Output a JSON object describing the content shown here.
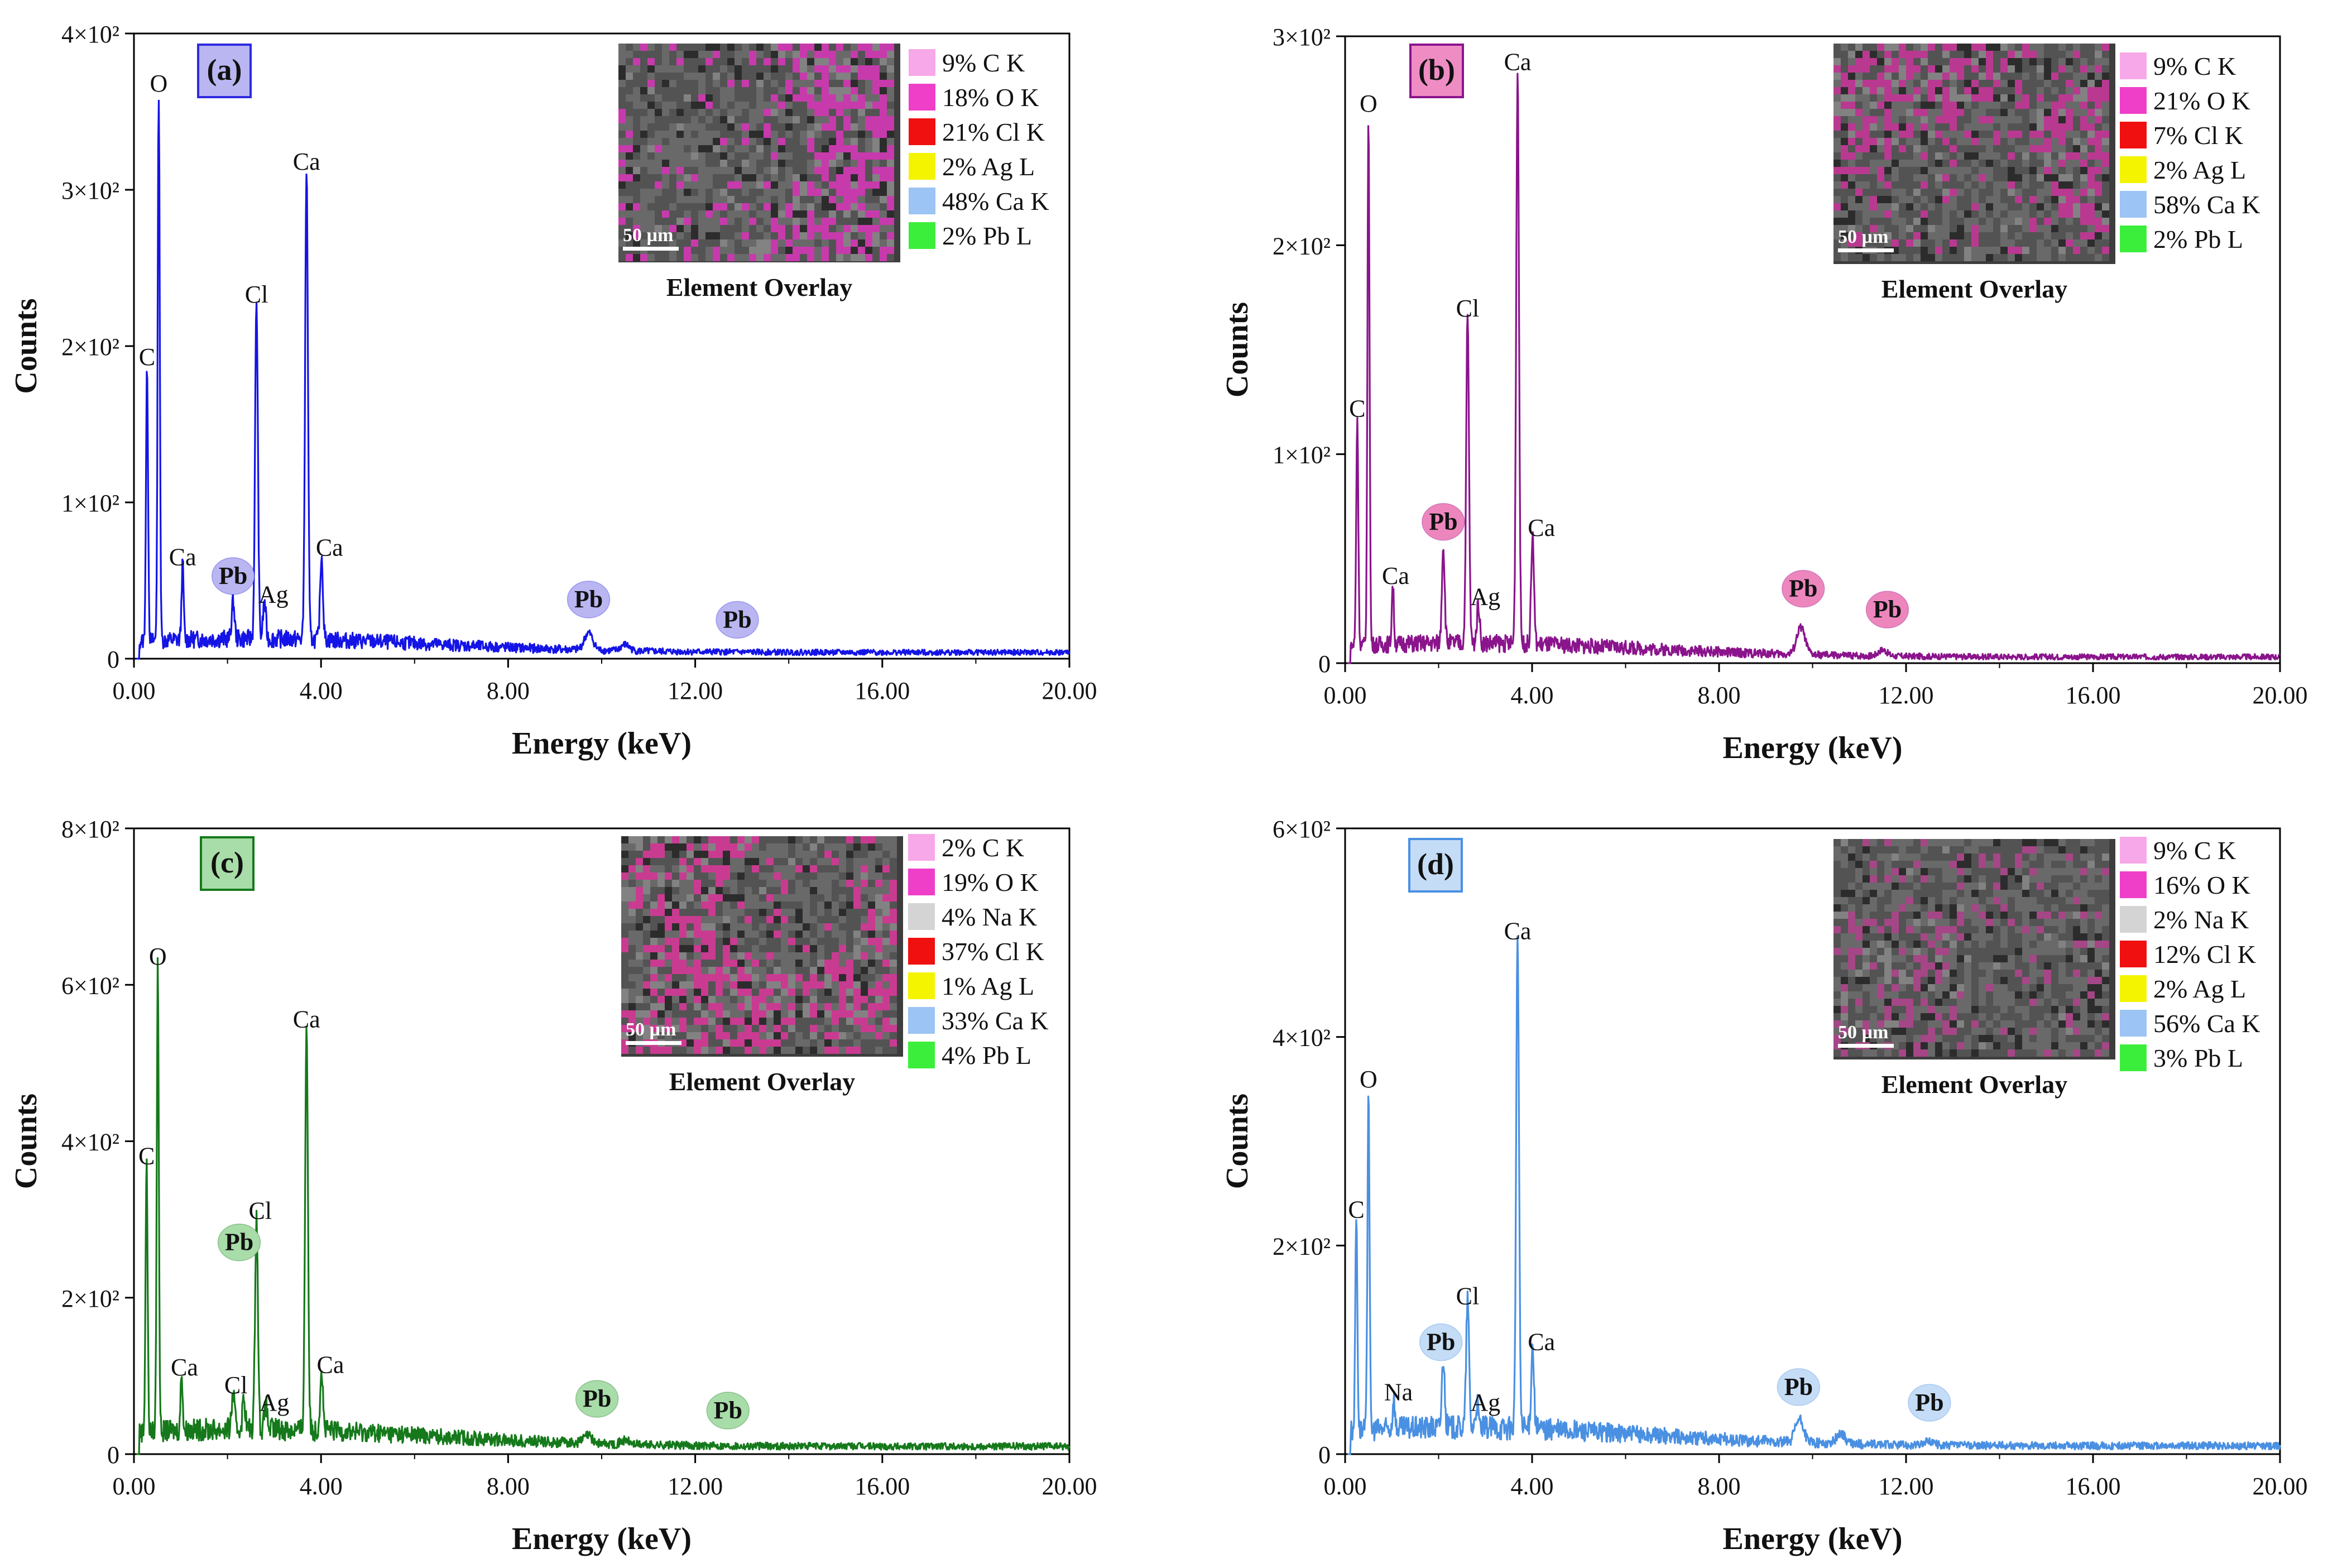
{
  "chart_data": [
    {
      "type": "line",
      "panel_label": "(a)",
      "xlabel": "Energy (keV)",
      "ylabel": "Counts",
      "xlim": [
        0,
        20
      ],
      "ylim": [
        0,
        400
      ],
      "x_ticks": [
        "0.00",
        "4.00",
        "8.00",
        "12.00",
        "16.00",
        "20.00"
      ],
      "y_ticks": [
        "0",
        "1×10²",
        "2×10²",
        "3×10²",
        "4×10²"
      ],
      "line_color": "#1414e6",
      "baseline": 4,
      "peaks": [
        [
          0.28,
          180
        ],
        [
          0.53,
          355
        ],
        [
          1.04,
          52
        ],
        [
          2.12,
          28
        ],
        [
          2.79,
          28
        ],
        [
          2.62,
          220
        ],
        [
          3.69,
          305
        ],
        [
          4.01,
          58
        ],
        [
          9.72,
          15
        ],
        [
          10.5,
          8
        ]
      ],
      "peak_labels": [
        {
          "text": "C",
          "x": 0.28,
          "y": 180,
          "circled": false
        },
        {
          "text": "O",
          "x": 0.53,
          "y": 355,
          "circled": false
        },
        {
          "text": "Ca",
          "x": 1.04,
          "y": 52,
          "circled": false
        },
        {
          "text": "Pb",
          "x": 2.12,
          "y": 40,
          "circled": true
        },
        {
          "text": "Ag",
          "x": 2.98,
          "y": 28,
          "circled": false
        },
        {
          "text": "Cl",
          "x": 2.62,
          "y": 220,
          "circled": false
        },
        {
          "text": "Ca",
          "x": 3.69,
          "y": 305,
          "circled": false
        },
        {
          "text": "Ca",
          "x": 4.18,
          "y": 58,
          "circled": false
        },
        {
          "text": "Pb",
          "x": 9.72,
          "y": 25,
          "circled": true
        },
        {
          "text": "Pb",
          "x": 12.9,
          "y": 12,
          "circled": true
        }
      ],
      "overlay_caption": "Element Overlay",
      "scale_label": "50 µm",
      "legend": [
        {
          "label": "9% C K",
          "color": "#f7a8e8"
        },
        {
          "label": "18% O K",
          "color": "#ef3fc8"
        },
        {
          "label": "21% Cl K",
          "color": "#f01010"
        },
        {
          "label": "2% Ag L",
          "color": "#f4f400"
        },
        {
          "label": "48% Ca K",
          "color": "#9cc4f4"
        },
        {
          "label": "2% Pb L",
          "color": "#3cee3c"
        }
      ],
      "overlay_tint": "#d63ab8",
      "label_box_color": "#b9b6f2",
      "label_box_border": "#2f2ae0",
      "circle_color": "#b9b6f2"
    },
    {
      "type": "line",
      "panel_label": "(b)",
      "xlabel": "Energy (keV)",
      "ylabel": "Counts",
      "xlim": [
        0,
        20
      ],
      "ylim": [
        0,
        300
      ],
      "x_ticks": [
        "0.00",
        "4.00",
        "8.00",
        "12.00",
        "16.00",
        "20.00"
      ],
      "y_ticks": [
        "0",
        "1×10²",
        "2×10²",
        "3×10²"
      ],
      "line_color": "#8a148c",
      "baseline": 3,
      "peaks": [
        [
          0.26,
          112
        ],
        [
          0.5,
          258
        ],
        [
          1.02,
          32
        ],
        [
          2.1,
          50
        ],
        [
          2.85,
          22
        ],
        [
          2.62,
          160
        ],
        [
          3.69,
          278
        ],
        [
          4.01,
          55
        ],
        [
          9.75,
          16
        ],
        [
          11.5,
          6
        ]
      ],
      "peak_labels": [
        {
          "text": "C",
          "x": 0.26,
          "y": 112,
          "circled": false
        },
        {
          "text": "O",
          "x": 0.5,
          "y": 258,
          "circled": false
        },
        {
          "text": "Ca",
          "x": 1.08,
          "y": 32,
          "circled": false
        },
        {
          "text": "Pb",
          "x": 2.1,
          "y": 58,
          "circled": true
        },
        {
          "text": "Ag",
          "x": 3.0,
          "y": 22,
          "circled": false
        },
        {
          "text": "Cl",
          "x": 2.62,
          "y": 160,
          "circled": false
        },
        {
          "text": "Ca",
          "x": 3.69,
          "y": 278,
          "circled": false
        },
        {
          "text": "Ca",
          "x": 4.2,
          "y": 55,
          "circled": false
        },
        {
          "text": "Pb",
          "x": 9.8,
          "y": 26,
          "circled": true
        },
        {
          "text": "Pb",
          "x": 11.6,
          "y": 16,
          "circled": true
        }
      ],
      "overlay_caption": "Element Overlay",
      "scale_label": "50 µm",
      "legend": [
        {
          "label": "9% C K",
          "color": "#f7a8e8"
        },
        {
          "label": "21% O K",
          "color": "#ef3fc8"
        },
        {
          "label": "7% Cl K",
          "color": "#f01010"
        },
        {
          "label": "2% Ag L",
          "color": "#f4f400"
        },
        {
          "label": "58% Ca K",
          "color": "#9cc4f4"
        },
        {
          "label": "2% Pb L",
          "color": "#3cee3c"
        }
      ],
      "overlay_tint": "#c6389a",
      "label_box_color": "#f08cc4",
      "label_box_border": "#8a148c",
      "circle_color": "#ee86be"
    },
    {
      "type": "line",
      "panel_label": "(c)",
      "xlabel": "Energy (keV)",
      "ylabel": "Counts",
      "xlim": [
        0,
        20
      ],
      "ylim": [
        0,
        800
      ],
      "x_ticks": [
        "0.00",
        "4.00",
        "8.00",
        "12.00",
        "16.00",
        "20.00"
      ],
      "y_ticks": [
        "0",
        "2×10²",
        "4×10²",
        "6×10²",
        "8×10²"
      ],
      "line_color": "#15791b",
      "baseline": 10,
      "peaks": [
        [
          0.27,
          355
        ],
        [
          0.51,
          610
        ],
        [
          1.02,
          85
        ],
        [
          2.12,
          55
        ],
        [
          2.35,
          50
        ],
        [
          2.82,
          40
        ],
        [
          2.62,
          285
        ],
        [
          3.69,
          530
        ],
        [
          4.01,
          88
        ],
        [
          9.7,
          20
        ],
        [
          10.5,
          15
        ]
      ],
      "peak_labels": [
        {
          "text": "C",
          "x": 0.27,
          "y": 355,
          "circled": false
        },
        {
          "text": "O",
          "x": 0.51,
          "y": 610,
          "circled": false
        },
        {
          "text": "Ca",
          "x": 1.08,
          "y": 85,
          "circled": false
        },
        {
          "text": "Cl",
          "x": 2.18,
          "y": 62,
          "circled": false
        },
        {
          "text": "Pb",
          "x": 2.25,
          "y": 245,
          "circled": true
        },
        {
          "text": "Ag",
          "x": 3.0,
          "y": 40,
          "circled": false
        },
        {
          "text": "Cl",
          "x": 2.7,
          "y": 285,
          "circled": false
        },
        {
          "text": "Ca",
          "x": 3.69,
          "y": 530,
          "circled": false
        },
        {
          "text": "Ca",
          "x": 4.2,
          "y": 88,
          "circled": false
        },
        {
          "text": "Pb",
          "x": 9.9,
          "y": 45,
          "circled": true
        },
        {
          "text": "Pb",
          "x": 12.7,
          "y": 30,
          "circled": true
        }
      ],
      "overlay_caption": "Element Overlay",
      "scale_label": "50 µm",
      "legend": [
        {
          "label": "2% C K",
          "color": "#f7a8e8"
        },
        {
          "label": "19% O K",
          "color": "#ef3fc8"
        },
        {
          "label": "4% Na K",
          "color": "#d4d4d4"
        },
        {
          "label": "37% Cl K",
          "color": "#f01010"
        },
        {
          "label": "1% Ag L",
          "color": "#f4f400"
        },
        {
          "label": "33% Ca K",
          "color": "#9cc4f4"
        },
        {
          "label": "4% Pb L",
          "color": "#3cee3c"
        }
      ],
      "overlay_tint": "#d83b9a",
      "label_box_color": "#a8dca8",
      "label_box_border": "#15791b",
      "circle_color": "#a8dca8"
    },
    {
      "type": "line",
      "panel_label": "(d)",
      "xlabel": "Energy (keV)",
      "ylabel": "Counts",
      "xlim": [
        0,
        20
      ],
      "ylim": [
        0,
        600
      ],
      "x_ticks": [
        "0.00",
        "4.00",
        "8.00",
        "12.00",
        "16.00",
        "20.00"
      ],
      "y_ticks": [
        "0",
        "2×10²",
        "4×10²",
        "6×10²"
      ],
      "line_color": "#4a90e2",
      "baseline": 8,
      "peaks": [
        [
          0.24,
          215
        ],
        [
          0.5,
          340
        ],
        [
          1.04,
          40
        ],
        [
          2.1,
          75
        ],
        [
          2.82,
          30
        ],
        [
          2.62,
          132
        ],
        [
          3.69,
          482
        ],
        [
          4.01,
          88
        ],
        [
          9.72,
          30
        ],
        [
          10.6,
          18
        ],
        [
          12.5,
          12
        ]
      ],
      "peak_labels": [
        {
          "text": "C",
          "x": 0.24,
          "y": 215,
          "circled": false
        },
        {
          "text": "O",
          "x": 0.5,
          "y": 340,
          "circled": false
        },
        {
          "text": "Na",
          "x": 1.14,
          "y": 40,
          "circled": false
        },
        {
          "text": "Pb",
          "x": 2.05,
          "y": 88,
          "circled": true
        },
        {
          "text": "Ag",
          "x": 3.0,
          "y": 30,
          "circled": false
        },
        {
          "text": "Cl",
          "x": 2.62,
          "y": 132,
          "circled": false
        },
        {
          "text": "Ca",
          "x": 3.69,
          "y": 482,
          "circled": false
        },
        {
          "text": "Ca",
          "x": 4.2,
          "y": 88,
          "circled": false
        },
        {
          "text": "Pb",
          "x": 9.7,
          "y": 45,
          "circled": true
        },
        {
          "text": "Pb",
          "x": 12.5,
          "y": 30,
          "circled": true
        }
      ],
      "overlay_caption": "Element Overlay",
      "scale_label": "50 µm",
      "legend": [
        {
          "label": "9% C K",
          "color": "#f7a8e8"
        },
        {
          "label": "16% O K",
          "color": "#ef3fc8"
        },
        {
          "label": "2% Na K",
          "color": "#d4d4d4"
        },
        {
          "label": "12% Cl K",
          "color": "#f01010"
        },
        {
          "label": "2% Ag L",
          "color": "#f4f400"
        },
        {
          "label": "56% Ca K",
          "color": "#9cc4f4"
        },
        {
          "label": "3% Pb L",
          "color": "#3cee3c"
        }
      ],
      "overlay_tint": "#b0478e",
      "label_box_color": "#c4dcf6",
      "label_box_border": "#4a90e2",
      "circle_color": "#c4dcf6"
    }
  ]
}
